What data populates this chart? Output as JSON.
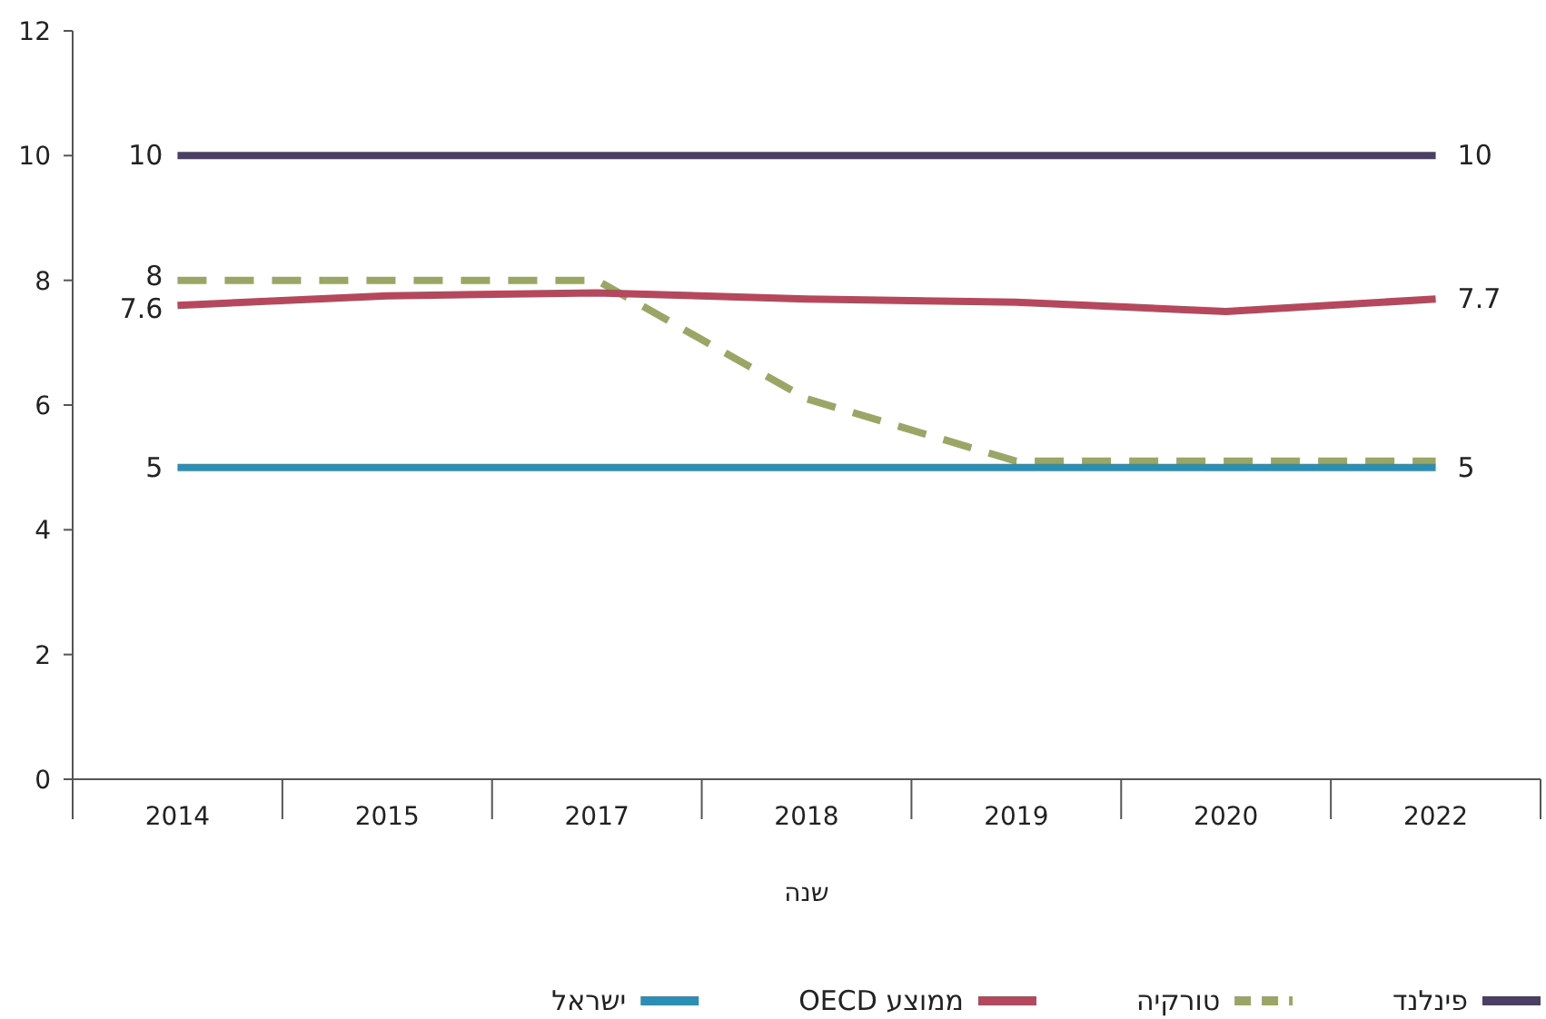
{
  "chart_data": {
    "type": "line",
    "xlabel": "שנה",
    "categories": [
      "2014",
      "2015",
      "2017",
      "2018",
      "2019",
      "2020",
      "2022"
    ],
    "ylim": [
      0,
      12
    ],
    "yticks": [
      0,
      2,
      4,
      6,
      8,
      10,
      12
    ],
    "legend": "bottom",
    "series": [
      {
        "name": "פינלנד",
        "color": "#4b3f63",
        "values": [
          10,
          10,
          10,
          10,
          10,
          10,
          10
        ],
        "value_labels": [
          "10",
          null,
          null,
          null,
          null,
          null,
          "10"
        ]
      },
      {
        "name": "טורקיה",
        "color": "#9aa665",
        "line_style": "dashed",
        "values": [
          8,
          8,
          8,
          6.1,
          5.1,
          5.1,
          5.1
        ],
        "value_labels": [
          "8",
          null,
          null,
          null,
          null,
          null,
          null
        ]
      },
      {
        "name": "ממוצע OECD",
        "color": "#b5485c",
        "values": [
          7.6,
          7.75,
          7.8,
          7.7,
          7.65,
          7.5,
          7.7
        ],
        "value_labels": [
          "7.6",
          null,
          null,
          null,
          null,
          null,
          "7.7"
        ]
      },
      {
        "name": "ישראל",
        "color": "#2b8fb5",
        "values": [
          5,
          5,
          5,
          5,
          5,
          5,
          5
        ],
        "value_labels": [
          "5",
          null,
          null,
          null,
          null,
          null,
          "5"
        ]
      }
    ]
  }
}
